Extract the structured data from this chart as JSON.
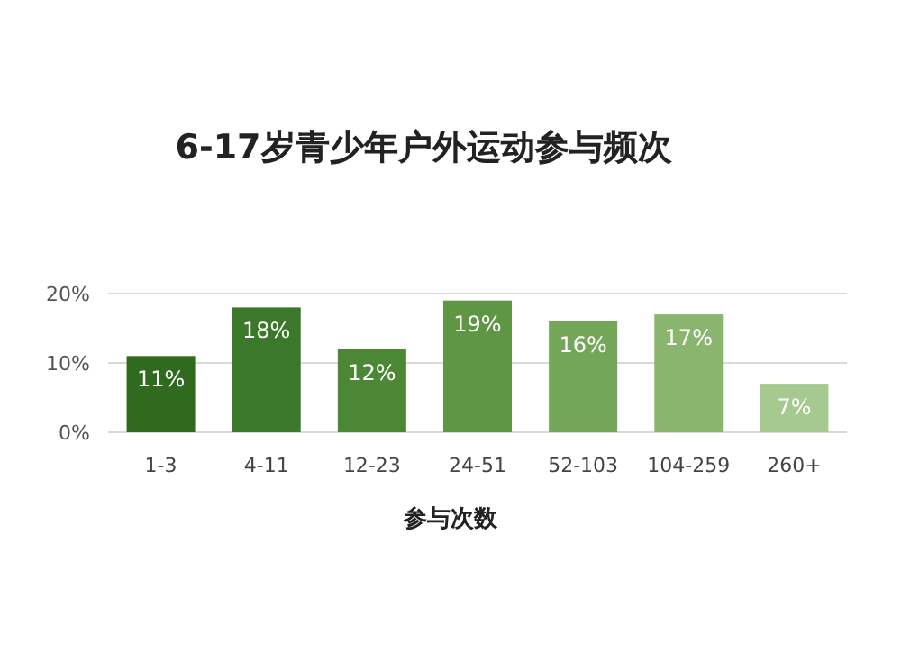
{
  "chart_data": {
    "type": "bar",
    "title": "6-17岁青少年户外运动参与频次",
    "xlabel": "参与次数",
    "categories": [
      "1-3",
      "4-11",
      "12-23",
      "24-51",
      "52-103",
      "104-259",
      "260+"
    ],
    "values": [
      11,
      18,
      12,
      19,
      16,
      17,
      7
    ],
    "colors": [
      "#2f6a1e",
      "#3b7829",
      "#4c8735",
      "#5e9644",
      "#73a658",
      "#8ab56f",
      "#a6c98f"
    ],
    "ylim": [
      0,
      20
    ],
    "yticks": [
      {
        "value": 0,
        "label": "0%"
      },
      {
        "value": 10,
        "label": "10%"
      },
      {
        "value": 20,
        "label": "20%"
      }
    ],
    "value_labels": [
      "11%",
      "18%",
      "12%",
      "19%",
      "16%",
      "17%",
      "7%"
    ],
    "grid": "y"
  }
}
